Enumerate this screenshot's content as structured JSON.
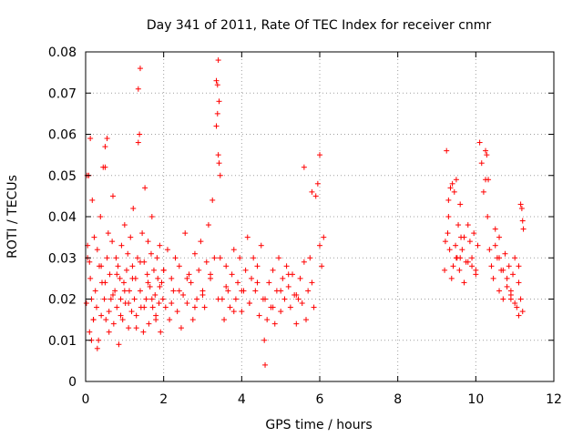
{
  "chart_data": {
    "type": "scatter",
    "title": "Day 341 of 2011, Rate Of TEC Index for receiver cnmr",
    "xlabel": "GPS time / hours",
    "ylabel": "ROTI / TECUs",
    "xlim": [
      0,
      12
    ],
    "ylim": [
      0,
      0.08
    ],
    "x_ticks": [
      "0",
      "2",
      "4",
      "6",
      "8",
      "10",
      "12"
    ],
    "y_ticks": [
      "0",
      "0.01",
      "0.02",
      "0.03",
      "0.04",
      "0.05",
      "0.06",
      "0.07",
      "0.08"
    ],
    "x_tick_values": [
      0,
      2,
      4,
      6,
      8,
      10,
      12
    ],
    "y_tick_values": [
      0,
      0.01,
      0.02,
      0.03,
      0.04,
      0.05,
      0.06,
      0.07,
      0.08
    ],
    "grid": true,
    "marker": "+",
    "series_color": "#ff0000",
    "series": [
      {
        "name": "ROTI",
        "x": [
          0.02,
          0.05,
          0.08,
          0.1,
          0.12,
          0.15,
          0.17,
          0.2,
          0.22,
          0.25,
          0.28,
          0.3,
          0.33,
          0.35,
          0.38,
          0.4,
          0.42,
          0.45,
          0.48,
          0.5,
          0.52,
          0.55,
          0.58,
          0.6,
          0.62,
          0.65,
          0.68,
          0.7,
          0.72,
          0.75,
          0.78,
          0.8,
          0.83,
          0.85,
          0.88,
          0.9,
          0.92,
          0.95,
          0.98,
          1.0,
          1.02,
          1.05,
          1.08,
          1.1,
          1.12,
          1.15,
          1.18,
          1.2,
          1.22,
          1.25,
          1.28,
          1.3,
          1.33,
          1.35,
          1.38,
          1.4,
          1.42,
          1.45,
          1.48,
          1.5,
          1.52,
          1.55,
          1.58,
          1.6,
          1.62,
          1.65,
          1.68,
          1.7,
          1.72,
          1.75,
          1.78,
          1.8,
          1.83,
          1.85,
          1.88,
          1.9,
          1.92,
          1.95,
          1.98,
          2.0,
          2.05,
          2.1,
          2.15,
          2.2,
          2.25,
          2.3,
          2.35,
          2.4,
          2.45,
          2.5,
          2.55,
          2.6,
          2.65,
          2.7,
          2.75,
          2.8,
          2.85,
          2.9,
          2.95,
          3.0,
          3.05,
          3.1,
          3.15,
          3.2,
          3.25,
          3.3,
          3.35,
          3.38,
          3.4,
          3.42,
          3.45,
          3.5,
          3.55,
          3.6,
          3.65,
          3.7,
          3.75,
          3.8,
          3.85,
          3.9,
          3.95,
          4.0,
          4.05,
          4.1,
          4.15,
          4.2,
          4.25,
          4.3,
          4.35,
          4.4,
          4.45,
          4.5,
          4.55,
          4.58,
          4.6,
          4.65,
          4.7,
          4.75,
          4.8,
          4.85,
          4.9,
          4.95,
          5.0,
          5.05,
          5.1,
          5.15,
          5.2,
          5.25,
          5.3,
          5.35,
          5.4,
          5.45,
          5.5,
          5.55,
          5.6,
          5.65,
          5.7,
          5.75,
          5.8,
          5.85,
          5.9,
          5.95,
          6.0,
          6.05,
          6.1,
          0.05,
          0.1,
          0.15,
          0.2,
          0.3,
          0.4,
          0.5,
          0.6,
          0.7,
          0.8,
          0.9,
          1.0,
          1.1,
          1.2,
          1.3,
          1.4,
          1.5,
          1.6,
          1.7,
          1.8,
          1.9,
          2.0,
          2.2,
          2.4,
          2.6,
          2.8,
          3.0,
          3.2,
          3.4,
          3.6,
          3.8,
          4.0,
          4.2,
          4.4,
          4.6,
          4.8,
          5.0,
          5.2,
          5.4,
          5.6,
          5.8,
          6.0,
          0.04,
          0.12,
          0.5,
          0.55,
          1.35,
          1.4,
          3.35,
          3.38,
          3.4,
          3.42,
          3.45,
          9.25,
          9.3,
          9.3,
          9.35,
          9.4,
          9.45,
          9.5,
          9.55,
          9.6,
          9.2,
          9.22,
          9.28,
          9.33,
          9.38,
          9.42,
          9.48,
          9.52,
          9.58,
          9.62,
          9.65,
          9.7,
          9.75,
          9.8,
          9.85,
          9.9,
          9.95,
          10.0,
          10.05,
          10.1,
          10.15,
          10.2,
          10.25,
          10.3,
          10.35,
          10.4,
          10.45,
          10.5,
          10.55,
          10.6,
          10.65,
          10.7,
          10.75,
          10.8,
          10.85,
          10.9,
          10.95,
          11.0,
          11.05,
          11.1,
          11.15,
          11.2,
          10.25,
          10.28,
          10.32,
          10.6,
          10.7,
          10.8,
          10.9,
          11.0,
          11.1,
          11.15,
          11.2,
          11.18,
          11.22,
          9.5,
          9.6,
          9.7,
          9.8,
          9.9,
          10.0,
          10.5,
          10.6,
          10.9,
          11.1
        ],
        "y": [
          0.019,
          0.03,
          0.05,
          0.012,
          0.025,
          0.02,
          0.044,
          0.015,
          0.035,
          0.022,
          0.018,
          0.032,
          0.01,
          0.028,
          0.04,
          0.016,
          0.024,
          0.052,
          0.02,
          0.057,
          0.015,
          0.03,
          0.036,
          0.012,
          0.026,
          0.02,
          0.034,
          0.045,
          0.014,
          0.022,
          0.03,
          0.018,
          0.028,
          0.009,
          0.025,
          0.02,
          0.033,
          0.015,
          0.024,
          0.038,
          0.019,
          0.027,
          0.031,
          0.013,
          0.022,
          0.035,
          0.017,
          0.028,
          0.042,
          0.02,
          0.025,
          0.016,
          0.03,
          0.058,
          0.06,
          0.022,
          0.018,
          0.036,
          0.012,
          0.029,
          0.047,
          0.02,
          0.026,
          0.034,
          0.014,
          0.023,
          0.031,
          0.04,
          0.018,
          0.027,
          0.021,
          0.015,
          0.03,
          0.025,
          0.019,
          0.033,
          0.012,
          0.024,
          0.02,
          0.027,
          0.018,
          0.032,
          0.015,
          0.025,
          0.022,
          0.03,
          0.017,
          0.028,
          0.013,
          0.021,
          0.036,
          0.019,
          0.026,
          0.024,
          0.015,
          0.031,
          0.02,
          0.027,
          0.034,
          0.022,
          0.018,
          0.029,
          0.038,
          0.025,
          0.044,
          0.03,
          0.062,
          0.072,
          0.078,
          0.068,
          0.05,
          0.02,
          0.015,
          0.028,
          0.022,
          0.018,
          0.026,
          0.032,
          0.02,
          0.024,
          0.03,
          0.017,
          0.022,
          0.027,
          0.035,
          0.019,
          0.025,
          0.03,
          0.022,
          0.028,
          0.016,
          0.033,
          0.02,
          0.01,
          0.004,
          0.015,
          0.024,
          0.018,
          0.027,
          0.014,
          0.022,
          0.03,
          0.017,
          0.025,
          0.02,
          0.028,
          0.023,
          0.018,
          0.026,
          0.021,
          0.014,
          0.02,
          0.025,
          0.019,
          0.029,
          0.015,
          0.022,
          0.03,
          0.024,
          0.018,
          0.045,
          0.048,
          0.033,
          0.028,
          0.035,
          0.033,
          0.029,
          0.01,
          0.015,
          0.008,
          0.028,
          0.024,
          0.017,
          0.021,
          0.026,
          0.016,
          0.022,
          0.019,
          0.025,
          0.013,
          0.029,
          0.018,
          0.024,
          0.02,
          0.016,
          0.023,
          0.027,
          0.019,
          0.022,
          0.025,
          0.018,
          0.021,
          0.026,
          0.02,
          0.023,
          0.017,
          0.022,
          0.019,
          0.024,
          0.02,
          0.018,
          0.022,
          0.026,
          0.021,
          0.052,
          0.046,
          0.055,
          0.05,
          0.059,
          0.052,
          0.059,
          0.071,
          0.076,
          0.073,
          0.065,
          0.055,
          0.053,
          0.03,
          0.056,
          0.04,
          0.044,
          0.047,
          0.048,
          0.046,
          0.03,
          0.038,
          0.03,
          0.027,
          0.034,
          0.036,
          0.032,
          0.025,
          0.028,
          0.033,
          0.03,
          0.027,
          0.035,
          0.032,
          0.024,
          0.029,
          0.038,
          0.034,
          0.03,
          0.036,
          0.027,
          0.033,
          0.058,
          0.053,
          0.046,
          0.049,
          0.04,
          0.032,
          0.028,
          0.025,
          0.033,
          0.03,
          0.022,
          0.027,
          0.02,
          0.031,
          0.025,
          0.028,
          0.021,
          0.026,
          0.03,
          0.018,
          0.024,
          0.02,
          0.017,
          0.056,
          0.055,
          0.049,
          0.035,
          0.027,
          0.023,
          0.02,
          0.019,
          0.016,
          0.043,
          0.039,
          0.042,
          0.037,
          0.049,
          0.043,
          0.035,
          0.029,
          0.028,
          0.026,
          0.037,
          0.03,
          0.022,
          0.028
        ],
        "description_colour_only": "#ff0000"
      }
    ]
  }
}
